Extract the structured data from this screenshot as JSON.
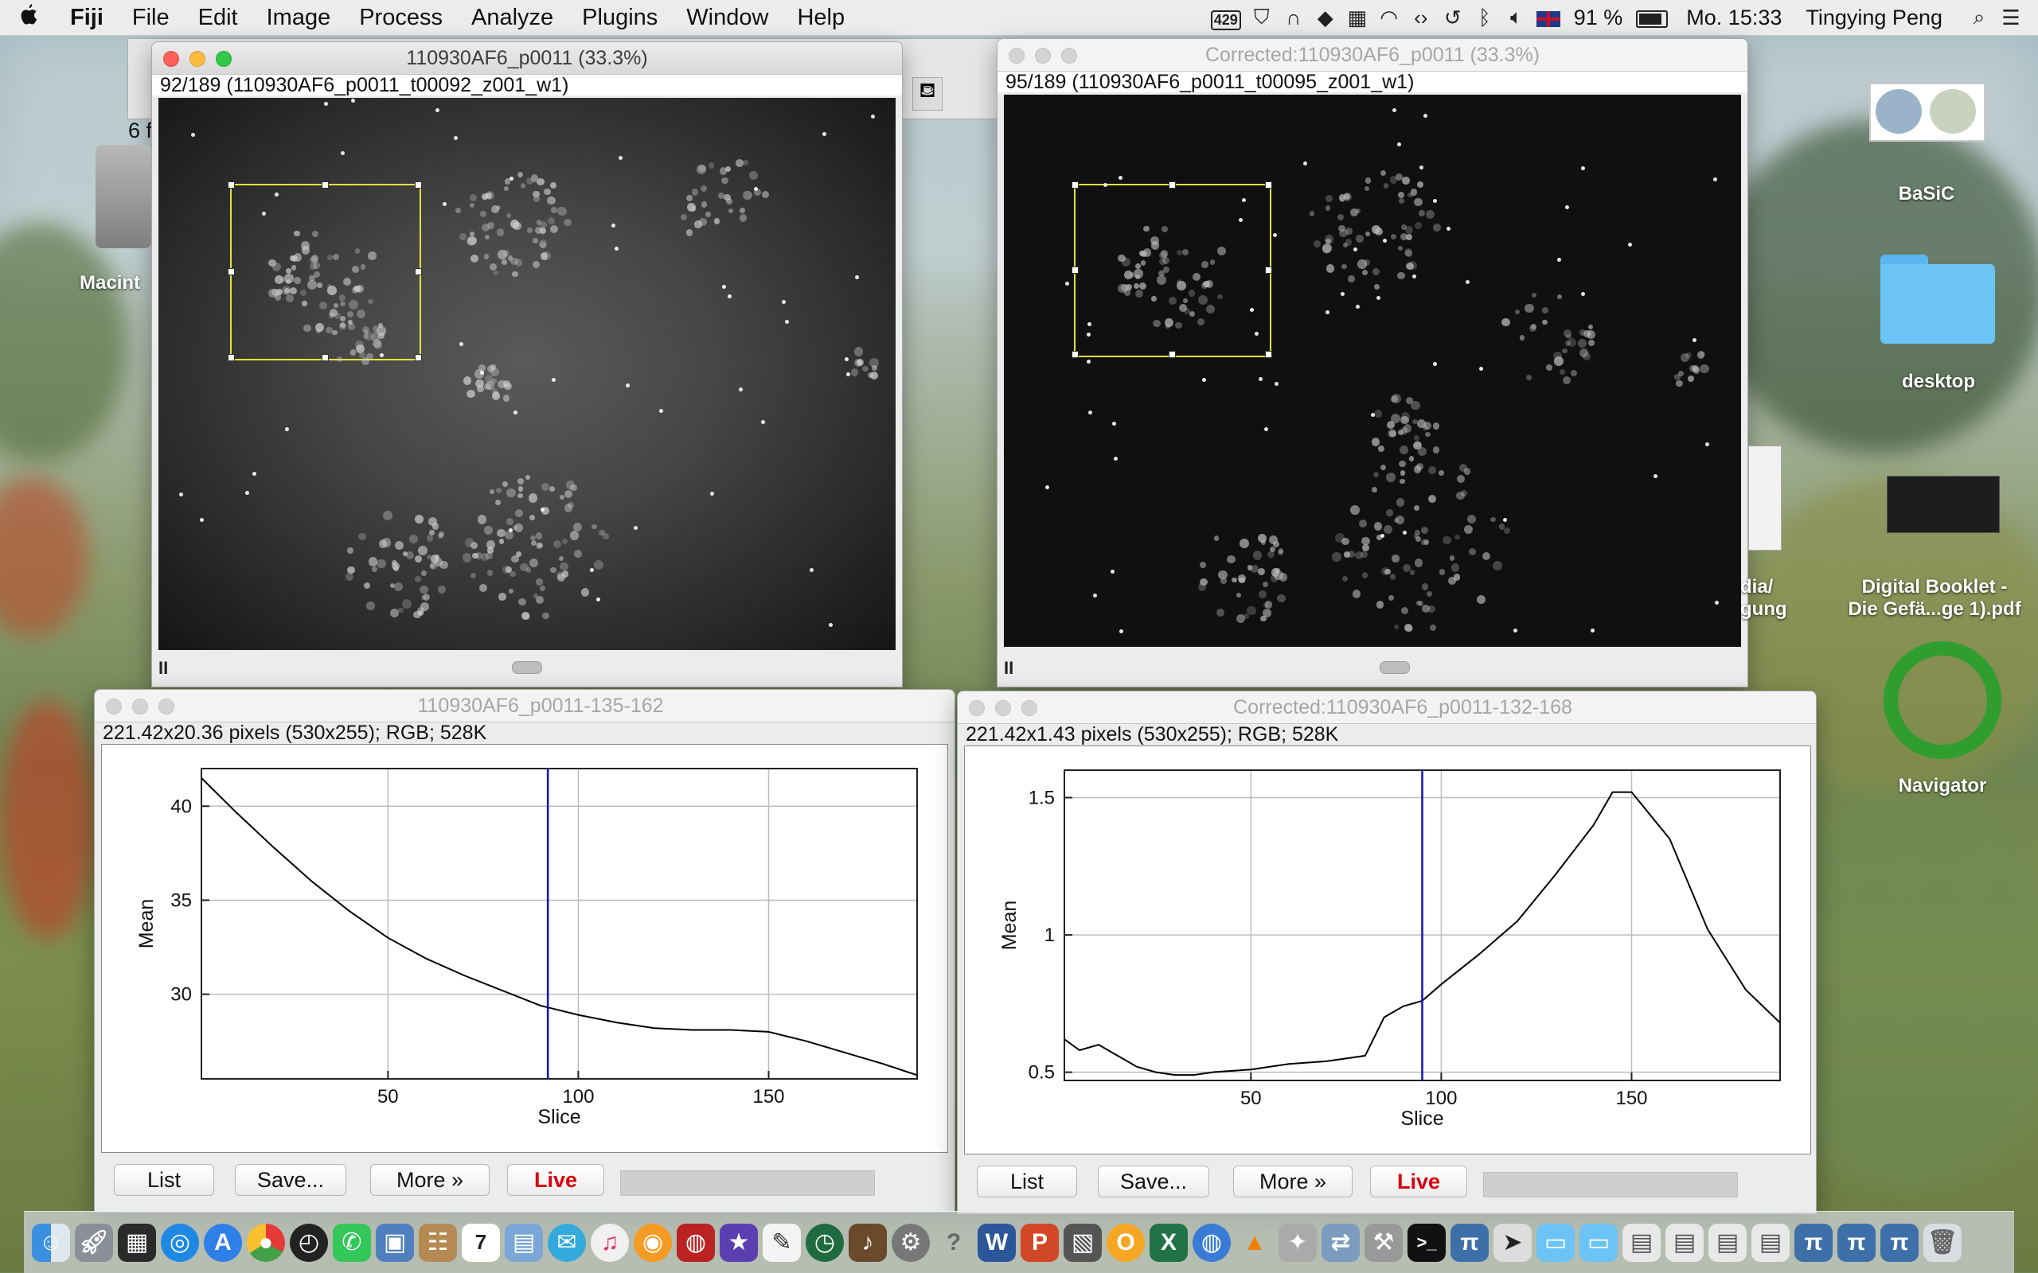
{
  "menubar": {
    "apple": "",
    "items": [
      "Fiji",
      "File",
      "Edit",
      "Image",
      "Process",
      "Analyze",
      "Plugins",
      "Window",
      "Help"
    ],
    "status_badge": "429",
    "battery": "91 %",
    "clock": "Mo. 15:33",
    "user": "Tingying Peng"
  },
  "window_raw": {
    "title": "110930AF6_p0011 (33.3%)",
    "info": "92/189 (110930AF6_p0011_t00092_z001_w1)",
    "pause": "II"
  },
  "window_corrected": {
    "title": "Corrected:110930AF6_p0011 (33.3%)",
    "info": "95/189 (110930AF6_p0011_t00095_z001_w1)",
    "pause": "II"
  },
  "partial_window": {
    "text": "6 f"
  },
  "plot_raw": {
    "title": "110930AF6_p0011-135-162",
    "info": "221.42x20.36 pixels (530x255); RGB; 528K",
    "buttons": {
      "list": "List",
      "save": "Save...",
      "more": "More »",
      "live": "Live"
    }
  },
  "plot_corrected": {
    "title": "Corrected:110930AF6_p0011-132-168",
    "info": "221.42x1.43 pixels (530x255); RGB; 528K",
    "buttons": {
      "list": "List",
      "save": "Save...",
      "more": "More »",
      "live": "Live"
    }
  },
  "desktop": {
    "icons": [
      {
        "label": "BaSiC"
      },
      {
        "label": "desktop"
      },
      {
        "label": "Digital Booklet -",
        "label2": "Die Gefä...ge 1).pdf"
      },
      {
        "label": "Navigator"
      },
      {
        "label": "Macint"
      },
      {
        "label": "dia/",
        "label2": "gung"
      }
    ]
  },
  "chart_data": [
    {
      "type": "line",
      "title": "",
      "xlabel": "Slice",
      "ylabel": "Mean",
      "xlim": [
        1,
        189
      ],
      "ylim": [
        25.5,
        42
      ],
      "xticks": [
        50,
        100,
        150
      ],
      "yticks": [
        30,
        35,
        40
      ],
      "grid": true,
      "marker_x": 92,
      "series": [
        {
          "x": [
            1,
            10,
            20,
            30,
            40,
            50,
            60,
            70,
            80,
            90,
            100,
            110,
            120,
            130,
            140,
            150,
            160,
            170,
            180,
            189
          ],
          "y": [
            41.5,
            39.7,
            37.8,
            36.0,
            34.4,
            33.0,
            31.9,
            31.0,
            30.2,
            29.4,
            28.9,
            28.5,
            28.2,
            28.1,
            28.1,
            28.0,
            27.5,
            26.9,
            26.3,
            25.7
          ]
        }
      ]
    },
    {
      "type": "line",
      "title": "",
      "xlabel": "Slice",
      "ylabel": "Mean",
      "xlim": [
        1,
        189
      ],
      "ylim": [
        0.47,
        1.6
      ],
      "xticks": [
        50,
        100,
        150
      ],
      "yticks": [
        0.5,
        1.0,
        1.5
      ],
      "grid": true,
      "marker_x": 95,
      "series": [
        {
          "x": [
            1,
            5,
            10,
            15,
            20,
            25,
            30,
            35,
            40,
            50,
            60,
            70,
            80,
            85,
            90,
            95,
            100,
            110,
            120,
            130,
            140,
            145,
            150,
            160,
            170,
            180,
            189
          ],
          "y": [
            0.62,
            0.58,
            0.6,
            0.56,
            0.52,
            0.5,
            0.49,
            0.49,
            0.5,
            0.51,
            0.53,
            0.54,
            0.56,
            0.7,
            0.74,
            0.76,
            0.82,
            0.93,
            1.05,
            1.22,
            1.4,
            1.52,
            1.52,
            1.35,
            1.02,
            0.8,
            0.68
          ]
        }
      ]
    }
  ]
}
